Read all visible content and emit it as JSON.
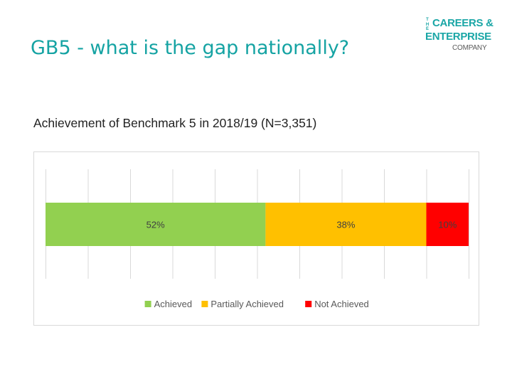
{
  "slide": {
    "title": "GB5 - what is the gap nationally?"
  },
  "logo": {
    "the": "THE",
    "line1": "CAREERS &",
    "line2": "ENTERPRISE",
    "line3": "COMPANY"
  },
  "colors": {
    "title": "#15a3a3",
    "achieved": "#92d050",
    "partially_achieved": "#ffc000",
    "not_achieved": "#ff0000",
    "gridline": "#d9d9d9"
  },
  "chart_data": {
    "type": "bar",
    "orientation": "horizontal",
    "stacked": true,
    "title": "Achievement of Benchmark 5 in 2018/19 (N=3,351)",
    "categories": [
      ""
    ],
    "xlim": [
      0,
      100
    ],
    "grid": true,
    "legend_position": "bottom",
    "series": [
      {
        "name": "Achieved",
        "values": [
          52
        ],
        "label": "52%",
        "color": "#92d050"
      },
      {
        "name": "Partially Achieved",
        "values": [
          38
        ],
        "label": "38%",
        "color": "#ffc000"
      },
      {
        "name": "Not Achieved",
        "values": [
          10
        ],
        "label": "10%",
        "color": "#ff0000"
      }
    ]
  }
}
